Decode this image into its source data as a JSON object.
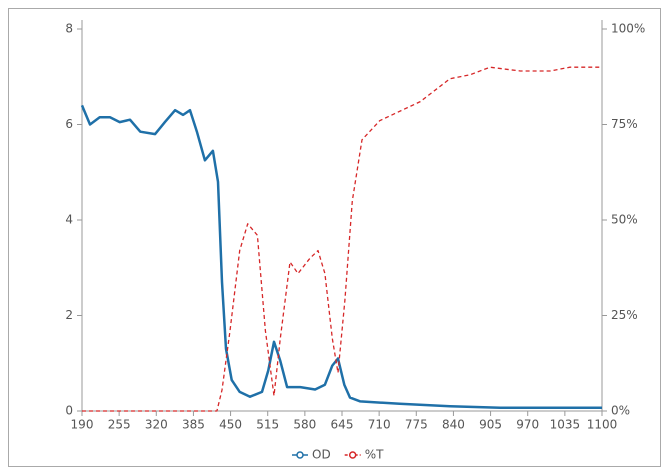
{
  "chart_data": {
    "type": "line",
    "xlim": [
      190,
      1100
    ],
    "xticks": [
      190,
      255,
      320,
      385,
      450,
      515,
      580,
      645,
      710,
      775,
      840,
      905,
      970,
      1035,
      1100
    ],
    "ylim": [
      0,
      8
    ],
    "yticks": [
      0,
      2,
      4,
      6,
      8
    ],
    "y2lim": [
      0,
      100
    ],
    "y2ticks": [
      {
        "value": 0,
        "label": "0%"
      },
      {
        "value": 25,
        "label": "25%"
      },
      {
        "value": 50,
        "label": "50%"
      },
      {
        "value": 75,
        "label": "75%"
      },
      {
        "value": 100,
        "label": "100%"
      }
    ],
    "legend": "bottom",
    "series": [
      {
        "name": "OD",
        "color": "#1f70a8",
        "style": "solid",
        "x": [
          190,
          204,
          221,
          239,
          256,
          274,
          292,
          318,
          335,
          353,
          367,
          379,
          391,
          405,
          419,
          428,
          435,
          442,
          452,
          466,
          484,
          505,
          516,
          526,
          537,
          549,
          572,
          598,
          615,
          628,
          638,
          649,
          659,
          677,
          746,
          834,
          922,
          1009,
          1100
        ],
        "values": [
          6.4,
          6.0,
          6.15,
          6.15,
          6.05,
          6.1,
          5.85,
          5.8,
          6.05,
          6.3,
          6.2,
          6.3,
          5.85,
          5.25,
          5.45,
          4.8,
          2.7,
          1.3,
          0.65,
          0.4,
          0.3,
          0.4,
          0.85,
          1.45,
          1.05,
          0.5,
          0.5,
          0.45,
          0.55,
          0.95,
          1.1,
          0.55,
          0.28,
          0.2,
          0.15,
          0.1,
          0.07,
          0.07,
          0.07
        ]
      },
      {
        "name": "%T",
        "color": "#d62728",
        "style": "dashed",
        "axis": "y2",
        "x": [
          190,
          426,
          435,
          449,
          466,
          480,
          497,
          511,
          526,
          537,
          554,
          568,
          589,
          603,
          615,
          628,
          638,
          650,
          663,
          680,
          711,
          782,
          834,
          869,
          904,
          957,
          1009,
          1044,
          1100
        ],
        "values": [
          0,
          0,
          5.5,
          21,
          42,
          49,
          46,
          21,
          4,
          19,
          39,
          36,
          40,
          42,
          36,
          19,
          10,
          29,
          55,
          71,
          76,
          81,
          87,
          88,
          90,
          89,
          89,
          90,
          90
        ]
      }
    ]
  }
}
